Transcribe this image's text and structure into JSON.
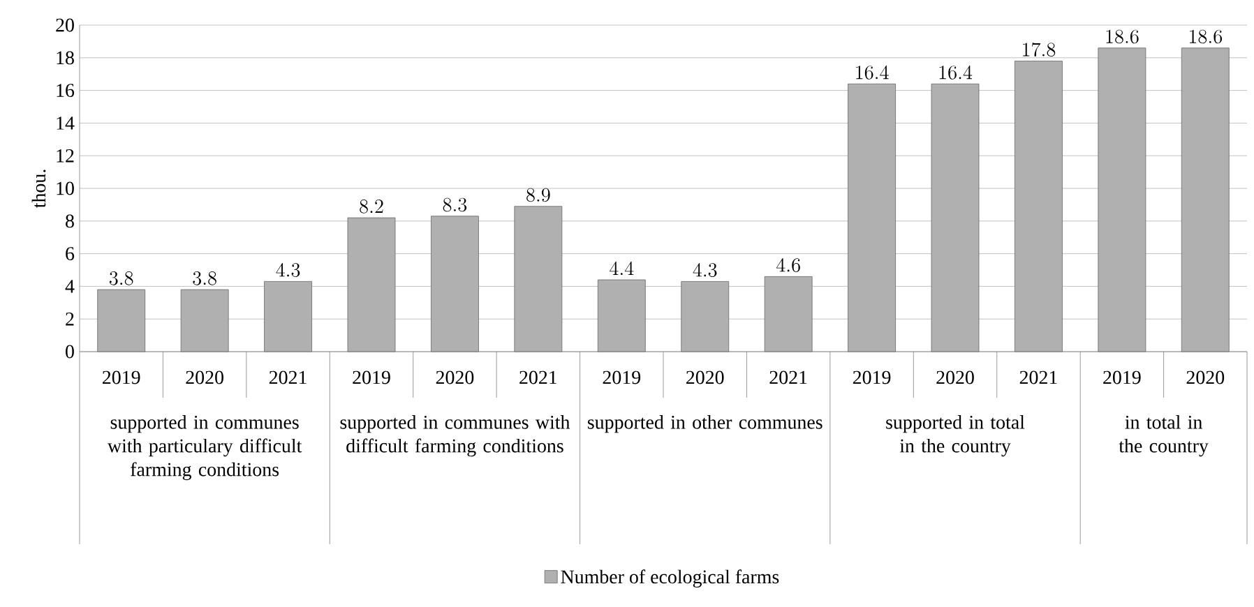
{
  "chart_data": {
    "type": "bar",
    "ylabel": "thou.",
    "categories": [
      "2019",
      "2020",
      "2021",
      "2019",
      "2020",
      "2021",
      "2019",
      "2020",
      "2021",
      "2019",
      "2020",
      "2021",
      "2019",
      "2020"
    ],
    "series": [
      {
        "name": "Number of ecological farms",
        "color": "#b0b0b0",
        "values": [
          3.8,
          3.8,
          4.3,
          8.2,
          8.3,
          8.9,
          4.4,
          4.3,
          4.6,
          16.4,
          16.4,
          17.8,
          18.6,
          18.6
        ]
      }
    ],
    "annotations": [
      "supported in communes with particulary difficult farming conditions",
      "supported in communes with difficult farming conditions",
      "supported in other communes",
      "supported in total in the country",
      "in total in the country"
    ],
    "ylim": [
      0,
      20
    ],
    "yticks": [
      0,
      2,
      4,
      6,
      8,
      10,
      12,
      14,
      16,
      18,
      20
    ],
    "grid": "y",
    "data_labels": true,
    "legend": "bottom"
  }
}
